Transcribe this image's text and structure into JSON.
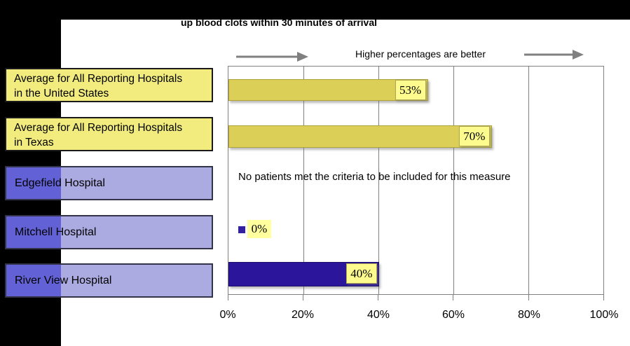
{
  "header": {
    "title_visible": "up blood clots within 30 minutes of arrival",
    "guidance": "Higher percentages are better"
  },
  "rows": [
    {
      "name": "us-average",
      "type": "average",
      "line1": "Average for All Reporting Hospitals",
      "line2": "in the United States",
      "value": 53,
      "value_label": "53%"
    },
    {
      "name": "texas-average",
      "type": "average",
      "line1": "Average for All Reporting Hospitals",
      "line2": "in Texas",
      "value": 70,
      "value_label": "70%"
    },
    {
      "name": "edgefield",
      "type": "hospital",
      "line1": "Edgefield Hospital",
      "line2": "",
      "value": null,
      "note": "No patients met the criteria to be included for this measure"
    },
    {
      "name": "mitchell",
      "type": "hospital",
      "line1": "Mitchell Hospital",
      "line2": "",
      "value": 0,
      "value_label": "0%"
    },
    {
      "name": "river-view",
      "type": "hospital",
      "line1": "River View Hospital",
      "line2": "",
      "value": 40,
      "value_label": "40%"
    }
  ],
  "axis": {
    "ticks": [
      "0%",
      "20%",
      "40%",
      "60%",
      "80%",
      "100%"
    ]
  },
  "colors": {
    "yellow_label_box": "#F1EC7D",
    "purple_label_light": "#ABABE1",
    "purple_label_dark": "#6262D6",
    "yellow_bar": "#DBCF58",
    "indigo_bar": "#2B169B",
    "value_box": "#FDFB8E",
    "zero_highlight": "#FFFF9E",
    "gridline": "#808080",
    "arrow": "#808080",
    "mask": "#000000"
  },
  "chart_data": {
    "type": "bar",
    "orientation": "horizontal",
    "title": "up blood clots within 30 minutes of arrival",
    "annotation": "Higher percentages are better",
    "categories": [
      "Average for All Reporting Hospitals in the United States",
      "Average for All Reporting Hospitals in Texas",
      "Edgefield Hospital",
      "Mitchell Hospital",
      "River View Hospital"
    ],
    "values": [
      53,
      70,
      null,
      0,
      40
    ],
    "no_data_text": "No patients met the criteria to be included for this measure",
    "xlabel": "",
    "ylabel": "",
    "xlim": [
      0,
      100
    ],
    "x_tick_labels": [
      "0%",
      "20%",
      "40%",
      "60%",
      "80%",
      "100%"
    ],
    "grid": true,
    "legend": false
  }
}
